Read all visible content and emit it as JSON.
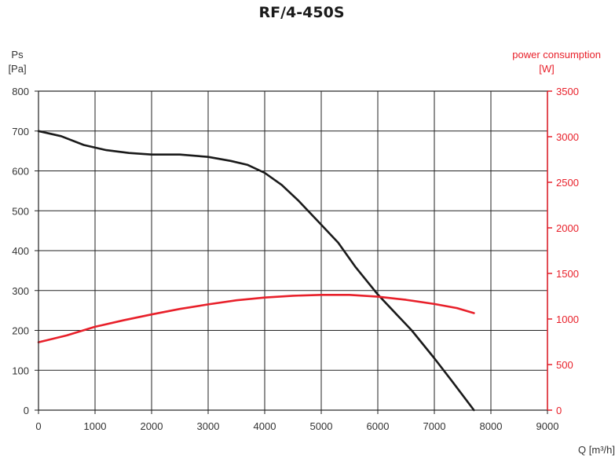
{
  "chart_data": {
    "type": "line",
    "title": "RF/4-450S",
    "ylabel_left": {
      "name": "Ps",
      "unit": "[Pa]"
    },
    "ylabel_right": {
      "name": "power consumption",
      "unit": "[W]"
    },
    "xlabel": "Q [m³/h]",
    "xlim": [
      0,
      9000
    ],
    "x_ticks": [
      0,
      1000,
      2000,
      3000,
      4000,
      5000,
      6000,
      7000,
      8000,
      9000
    ],
    "ylim_left": [
      0,
      800
    ],
    "y_ticks_left": [
      0,
      100,
      200,
      300,
      400,
      500,
      600,
      700,
      800
    ],
    "ylim_right": [
      0,
      3500
    ],
    "y_ticks_right": [
      0,
      500,
      1000,
      1500,
      2000,
      2500,
      3000,
      3500
    ],
    "grid": true,
    "series": [
      {
        "axis": "left",
        "color": "#1a1a1a",
        "x": [
          0,
          400,
          800,
          1200,
          1600,
          2000,
          2500,
          3000,
          3400,
          3700,
          4000,
          4300,
          4600,
          5000,
          5300,
          5600,
          6000,
          6300,
          6600,
          7000,
          7300,
          7700
        ],
        "values": [
          700,
          687,
          665,
          652,
          645,
          641,
          641,
          635,
          625,
          615,
          595,
          565,
          525,
          465,
          420,
          360,
          290,
          245,
          200,
          130,
          75,
          0
        ]
      },
      {
        "axis": "right",
        "color": "#e8202a",
        "x": [
          0,
          500,
          1000,
          1500,
          2000,
          2500,
          3000,
          3500,
          4000,
          4500,
          5000,
          5500,
          6000,
          6500,
          7000,
          7400,
          7700
        ],
        "values": [
          745,
          820,
          915,
          985,
          1050,
          1110,
          1160,
          1205,
          1235,
          1255,
          1265,
          1265,
          1245,
          1210,
          1165,
          1120,
          1065
        ]
      }
    ]
  }
}
